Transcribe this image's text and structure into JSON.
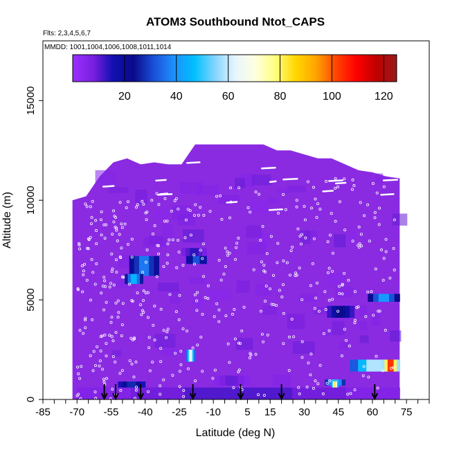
{
  "chart_data": {
    "type": "heatmap",
    "title": "ATOM3 Southbound Ntot_CAPS",
    "flights_label": "Flts: 2,3,4,5,6,7",
    "dates_label": "MMDD: 1001,1004,1006,1008,1011,1014",
    "xlabel": "Latitude (deg N)",
    "ylabel": "Altitude (m)",
    "xlim": [
      -85,
      85
    ],
    "ylim": [
      0,
      18000
    ],
    "x_ticks": [
      -85,
      -70,
      -55,
      -40,
      -25,
      -10,
      5,
      15,
      30,
      45,
      60,
      75
    ],
    "y_ticks": [
      0,
      5000,
      10000,
      15000
    ],
    "colorbar": {
      "range": [
        0,
        125
      ],
      "ticks": [
        20,
        40,
        60,
        80,
        100,
        120
      ],
      "colors": [
        "#9b30ff",
        "#7a1fe0",
        "#1010b0",
        "#0a0a8a",
        "#1a4fd8",
        "#1e90ff",
        "#00bfff",
        "#7fd4ff",
        "#e6f5ff",
        "#ffffe0",
        "#ffff80",
        "#ffd700",
        "#ffa500",
        "#ff4500",
        "#ff0000",
        "#c00000",
        "#9a1a1a"
      ]
    },
    "background_color": "#8a2be2",
    "profile_top_m": [
      [
        -72,
        10000
      ],
      [
        -66,
        10200
      ],
      [
        -60,
        11200
      ],
      [
        -54,
        11900
      ],
      [
        -48,
        12100
      ],
      [
        -42,
        11800
      ],
      [
        -36,
        11900
      ],
      [
        -30,
        11800
      ],
      [
        -24,
        11800
      ],
      [
        -18,
        12800
      ],
      [
        -12,
        12800
      ],
      [
        -6,
        12800
      ],
      [
        0,
        12800
      ],
      [
        6,
        12800
      ],
      [
        12,
        12800
      ],
      [
        18,
        12500
      ],
      [
        24,
        12500
      ],
      [
        30,
        12300
      ],
      [
        36,
        12100
      ],
      [
        42,
        12100
      ],
      [
        48,
        11800
      ],
      [
        54,
        11500
      ],
      [
        60,
        11400
      ],
      [
        66,
        11200
      ],
      [
        72,
        11100
      ]
    ],
    "hotspots": [
      {
        "lat": [
          -47,
          -34
        ],
        "alt": [
          6200,
          7200
        ],
        "value": 40
      },
      {
        "lat": [
          -49,
          -41
        ],
        "alt": [
          5800,
          6300
        ],
        "value": 50
      },
      {
        "lat": [
          -22,
          -13
        ],
        "alt": [
          6800,
          7400
        ],
        "value": 35
      },
      {
        "lat": [
          -24,
          -13
        ],
        "alt": [
          7200,
          7600
        ],
        "value": 15
      },
      {
        "lat": [
          40,
          52
        ],
        "alt": [
          4100,
          4700
        ],
        "value": 25
      },
      {
        "lat": [
          58,
          72
        ],
        "alt": [
          4900,
          5300
        ],
        "value": 45
      },
      {
        "lat": [
          -22,
          -18
        ],
        "alt": [
          1900,
          2500
        ],
        "value": 70
      },
      {
        "lat": [
          50,
          72
        ],
        "alt": [
          1400,
          2000
        ],
        "value": 65
      },
      {
        "lat": [
          64,
          72
        ],
        "alt": [
          1400,
          2000
        ],
        "value": 115
      },
      {
        "lat": [
          39,
          48
        ],
        "alt": [
          700,
          1000
        ],
        "value": 55
      },
      {
        "lat": [
          42,
          45
        ],
        "alt": [
          500,
          900
        ],
        "value": 90
      },
      {
        "lat": [
          -52,
          -40
        ],
        "alt": [
          500,
          900
        ],
        "value": 30
      },
      {
        "lat": [
          -70,
          72
        ],
        "alt": [
          0,
          600
        ],
        "value": 12
      },
      {
        "lat": [
          -10,
          6
        ],
        "alt": [
          700,
          1200
        ],
        "value": 10
      }
    ],
    "descent_arrows_lat": [
      -58,
      -53,
      -42,
      -19,
      2,
      20,
      61
    ]
  }
}
